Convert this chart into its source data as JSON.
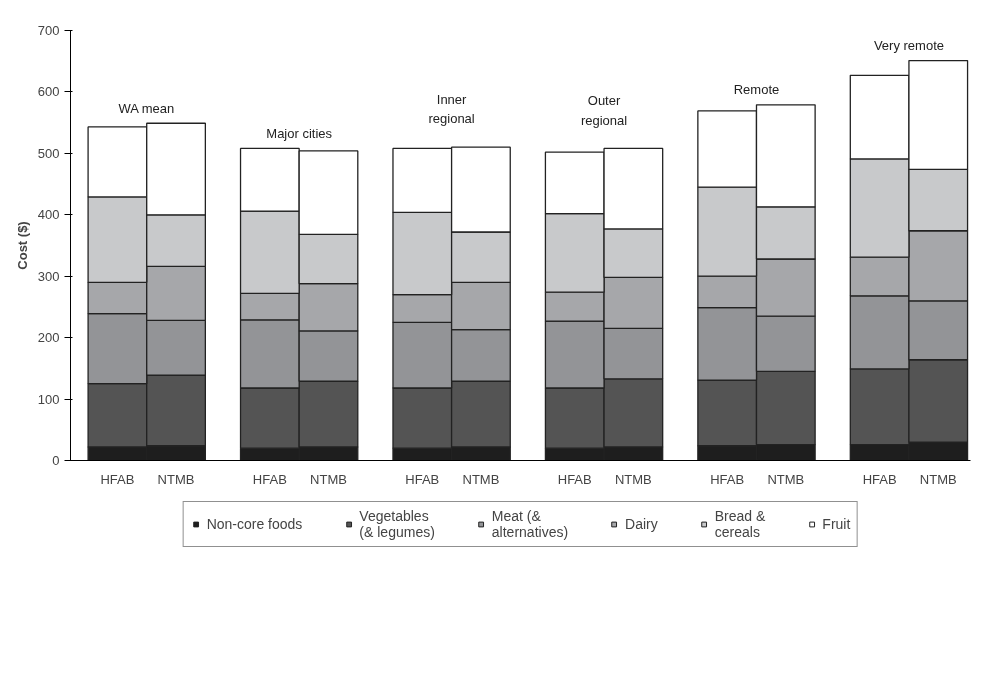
{
  "chart_data": {
    "type": "bar",
    "stacked": true,
    "ylabel": "Cost ($)",
    "categories": [
      "HFAB",
      "NTMB",
      "HFAB",
      "NTMB",
      "HFAB",
      "NTMB",
      "HFAB",
      "NTMB",
      "HFAB",
      "NTMB",
      "HFAB",
      "NTMB"
    ],
    "series": [
      {
        "name": "Non-core foods",
        "color": "#1e1e1e",
        "values": [
          22,
          24,
          20,
          22,
          20,
          22,
          20,
          22,
          24,
          26,
          26,
          30
        ]
      },
      {
        "name": "Vegetables\n(& legumes)",
        "color": "#545454",
        "values": [
          103,
          115,
          98,
          107,
          98,
          107,
          98,
          111,
          107,
          119,
          123,
          134
        ]
      },
      {
        "name": "Meat (&\nalternatives)",
        "color": "#939497",
        "values": [
          114,
          89,
          111,
          82,
          107,
          84,
          109,
          82,
          118,
          90,
          119,
          96
        ]
      },
      {
        "name": "Dairy",
        "color": "#a6a7aa",
        "values": [
          51,
          88,
          43,
          77,
          45,
          77,
          47,
          83,
          51,
          93,
          63,
          114
        ]
      },
      {
        "name": "Bread &\ncereals",
        "color": "#c8c9cb",
        "values": [
          139,
          84,
          134,
          80,
          134,
          82,
          128,
          79,
          145,
          85,
          160,
          100
        ]
      },
      {
        "name": "Fruit",
        "color": "#ffffff",
        "values": [
          114,
          149,
          102,
          136,
          104,
          138,
          100,
          131,
          124,
          166,
          136,
          177
        ]
      }
    ],
    "annotations": [
      "WA mean",
      "Major cities",
      "Inner\nregional",
      "Outer\nregional",
      "Remote",
      "Very remote"
    ],
    "ylim": [
      0,
      700
    ],
    "yticks": [
      0,
      100,
      200,
      300,
      400,
      500,
      600,
      700
    ],
    "grid": false,
    "legend": "bottom"
  }
}
